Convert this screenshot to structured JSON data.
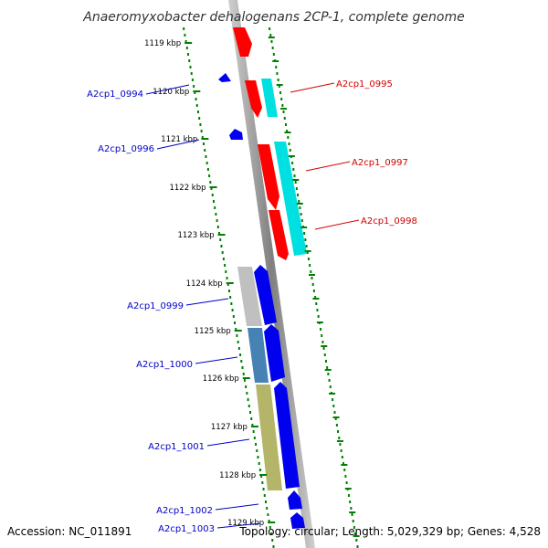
{
  "title": "Anaeromyxobacter dehalogenans 2CP-1, complete genome",
  "footer": {
    "accession": "Accession: NC_011891",
    "topology": "Topology: circular; Length: 5,029,329 bp; Genes: 4,528"
  },
  "colors": {
    "backbone": "#888888",
    "tick_mark": "#008000",
    "label_reverse": "#d40000",
    "label_forward": "#0000c8",
    "red_gene": "#ff0000",
    "cyan_gene": "#00e0e0",
    "blue_gene": "#0000ee",
    "gray_gene": "#c0c0c0",
    "steel_gene": "#4682b4",
    "olive_gene": "#b5b56a"
  },
  "ticks": [
    "1119 kbp",
    "1120 kbp",
    "1121 kbp",
    "1122 kbp",
    "1123 kbp",
    "1124 kbp",
    "1125 kbp",
    "1126 kbp",
    "1127 kbp",
    "1128 kbp",
    "1129 kbp"
  ],
  "gene_labels": {
    "right": [
      "A2cp1_0995",
      "A2cp1_0997",
      "A2cp1_0998"
    ],
    "left": [
      "A2cp1_0994",
      "A2cp1_0996",
      "A2cp1_0999",
      "A2cp1_1000",
      "A2cp1_1001",
      "A2cp1_1002",
      "A2cp1_1003"
    ]
  }
}
